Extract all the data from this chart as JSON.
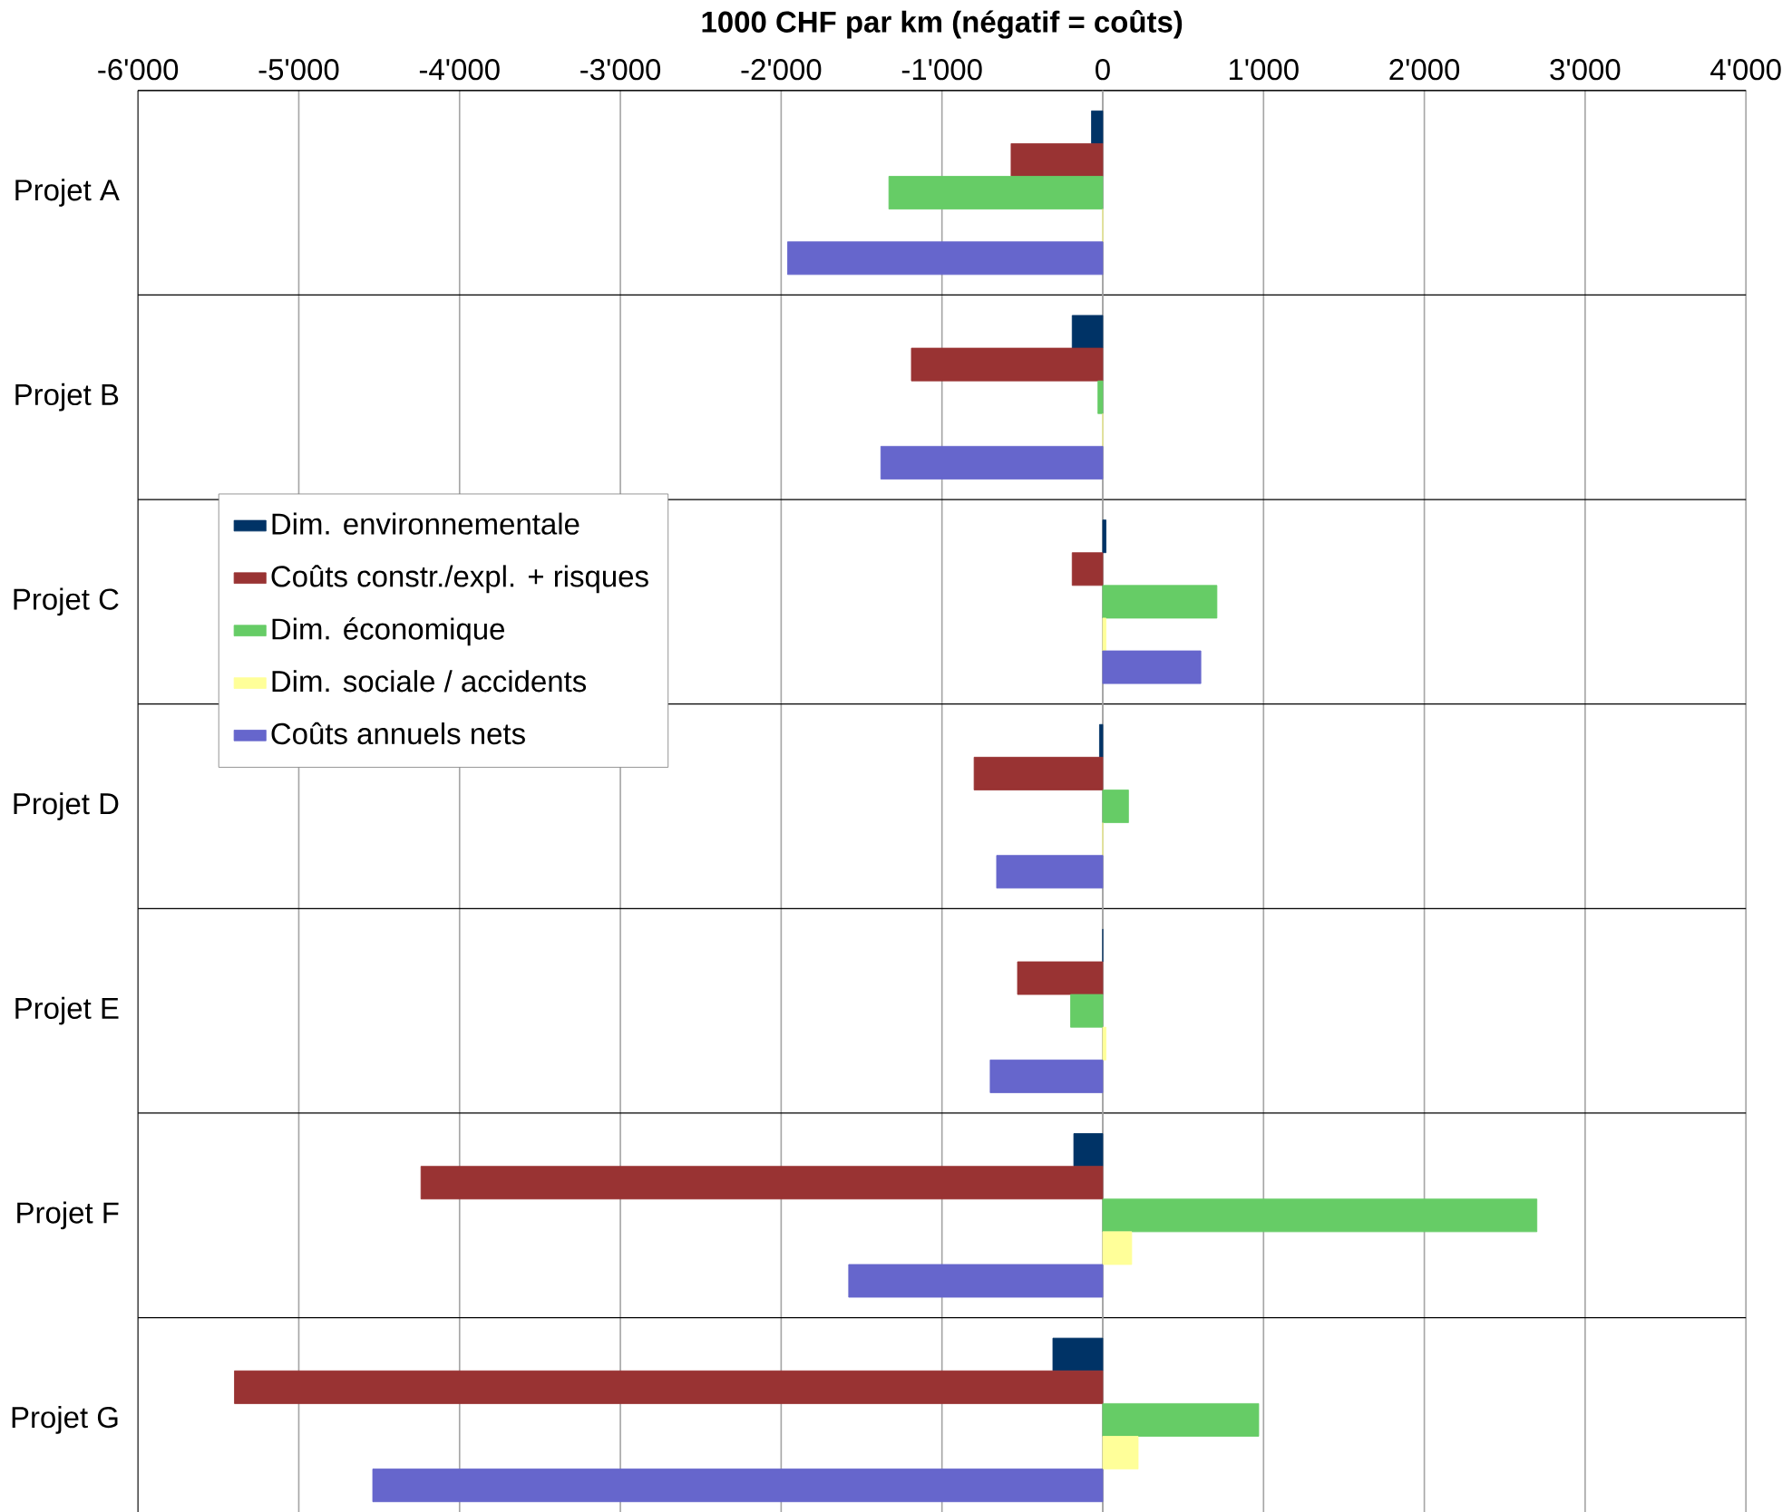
{
  "chart_data": {
    "type": "bar",
    "orientation": "horizontal",
    "xlabel": "1000 CHF par km (négatif = coûts)",
    "categories": [
      "Projet A",
      "Projet B",
      "Projet C",
      "Projet D",
      "Projet E",
      "Projet F",
      "Projet G"
    ],
    "series": [
      {
        "name": "Dim. environnementale",
        "color": "#003366",
        "values": [
          -70,
          -190,
          20,
          -20,
          0,
          -180,
          -310
        ]
      },
      {
        "name": "Coûts constr./expl. + risques",
        "color": "#993333",
        "values": [
          -570,
          -1190,
          -190,
          -800,
          -530,
          -4240,
          -5400
        ]
      },
      {
        "name": "Dim. économique",
        "color": "#66cc66",
        "values": [
          -1330,
          -30,
          710,
          160,
          -200,
          2700,
          970
        ]
      },
      {
        "name": "Dim. sociale / accidents",
        "color": "#ffff99",
        "values": [
          0,
          0,
          20,
          0,
          20,
          180,
          220
        ]
      },
      {
        "name": "Coûts annuels nets",
        "color": "#6666cc",
        "values": [
          -1960,
          -1380,
          610,
          -660,
          -700,
          -1580,
          -4540
        ]
      }
    ],
    "xlim": [
      -6000,
      4000
    ],
    "xticks": [
      {
        "value": -6000,
        "label": "-6'000"
      },
      {
        "value": -5000,
        "label": "-5'000"
      },
      {
        "value": -4000,
        "label": "-4'000"
      },
      {
        "value": -3000,
        "label": "-3'000"
      },
      {
        "value": -2000,
        "label": "-2'000"
      },
      {
        "value": -1000,
        "label": "-1'000"
      },
      0,
      {
        "value": 1000,
        "label": "1'000"
      },
      {
        "value": 2000,
        "label": "2'000"
      },
      {
        "value": 3000,
        "label": "3'000"
      },
      {
        "value": 4000,
        "label": "4'000"
      }
    ],
    "grid": true,
    "legend": "left"
  }
}
